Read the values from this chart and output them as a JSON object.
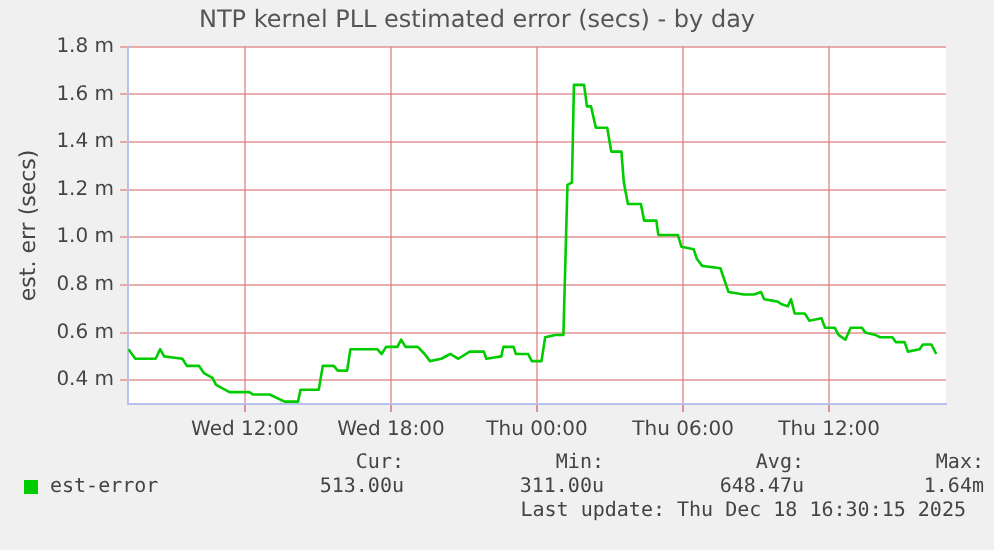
{
  "chart_data": {
    "type": "line",
    "title": "NTP kernel PLL estimated error (secs) - by day",
    "ylabel": "est. err (secs)",
    "x": [
      "2025-12-17T07:13",
      "2025-12-17T07:30",
      "2025-12-17T08:20",
      "2025-12-17T08:31",
      "2025-12-17T08:41",
      "2025-12-17T09:26",
      "2025-12-17T09:37",
      "2025-12-17T10:07",
      "2025-12-17T10:19",
      "2025-12-17T10:40",
      "2025-12-17T10:49",
      "2025-12-17T11:22",
      "2025-12-17T12:11",
      "2025-12-17T12:20",
      "2025-12-17T13:01",
      "2025-12-17T13:38",
      "2025-12-17T14:11",
      "2025-12-17T14:17",
      "2025-12-17T15:02",
      "2025-12-17T15:12",
      "2025-12-17T15:39",
      "2025-12-17T15:49",
      "2025-12-17T16:12",
      "2025-12-17T16:20",
      "2025-12-17T17:26",
      "2025-12-17T17:37",
      "2025-12-17T17:48",
      "2025-12-17T18:16",
      "2025-12-17T18:25",
      "2025-12-17T18:36",
      "2025-12-17T19:06",
      "2025-12-17T19:23",
      "2025-12-17T19:36",
      "2025-12-17T20:04",
      "2025-12-17T20:26",
      "2025-12-17T20:46",
      "2025-12-17T21:14",
      "2025-12-17T21:49",
      "2025-12-17T21:55",
      "2025-12-17T22:32",
      "2025-12-17T22:37",
      "2025-12-17T23:02",
      "2025-12-17T23:08",
      "2025-12-17T23:38",
      "2025-12-17T23:47",
      "2025-12-18T00:11",
      "2025-12-18T00:20",
      "2025-12-18T00:45",
      "2025-12-18T01:05",
      "2025-12-18T01:15",
      "2025-12-18T01:26",
      "2025-12-18T01:31",
      "2025-12-18T01:56",
      "2025-12-18T02:03",
      "2025-12-18T02:13",
      "2025-12-18T02:25",
      "2025-12-18T02:53",
      "2025-12-18T03:03",
      "2025-12-18T03:28",
      "2025-12-18T03:34",
      "2025-12-18T03:44",
      "2025-12-18T04:16",
      "2025-12-18T04:24",
      "2025-12-18T04:54",
      "2025-12-18T04:59",
      "2025-12-18T05:47",
      "2025-12-18T05:56",
      "2025-12-18T06:26",
      "2025-12-18T06:34",
      "2025-12-18T06:47",
      "2025-12-18T07:32",
      "2025-12-18T07:52",
      "2025-12-18T08:30",
      "2025-12-18T08:55",
      "2025-12-18T09:12",
      "2025-12-18T09:20",
      "2025-12-18T09:53",
      "2025-12-18T10:02",
      "2025-12-18T10:18",
      "2025-12-18T10:26",
      "2025-12-18T10:35",
      "2025-12-18T11:00",
      "2025-12-18T11:11",
      "2025-12-18T11:41",
      "2025-12-18T11:50",
      "2025-12-18T12:14",
      "2025-12-18T12:23",
      "2025-12-18T12:40",
      "2025-12-18T12:53",
      "2025-12-18T13:21",
      "2025-12-18T13:29",
      "2025-12-18T13:54",
      "2025-12-18T14:06",
      "2025-12-18T14:36",
      "2025-12-18T14:44",
      "2025-12-18T15:06",
      "2025-12-18T15:14",
      "2025-12-18T15:43",
      "2025-12-18T15:51",
      "2025-12-18T16:12",
      "2025-12-18T16:24"
    ],
    "series": [
      {
        "name": "est-error",
        "color": "#00cc00",
        "values": [
          0.53,
          0.49,
          0.49,
          0.53,
          0.5,
          0.49,
          0.46,
          0.46,
          0.43,
          0.41,
          0.38,
          0.35,
          0.35,
          0.34,
          0.34,
          0.31,
          0.31,
          0.36,
          0.36,
          0.46,
          0.46,
          0.44,
          0.44,
          0.53,
          0.53,
          0.51,
          0.54,
          0.54,
          0.57,
          0.54,
          0.54,
          0.51,
          0.48,
          0.49,
          0.51,
          0.49,
          0.52,
          0.52,
          0.49,
          0.5,
          0.54,
          0.54,
          0.51,
          0.51,
          0.48,
          0.48,
          0.58,
          0.59,
          0.59,
          1.22,
          1.23,
          1.64,
          1.64,
          1.55,
          1.55,
          1.46,
          1.46,
          1.36,
          1.36,
          1.23,
          1.14,
          1.14,
          1.07,
          1.07,
          1.01,
          1.01,
          0.96,
          0.95,
          0.91,
          0.88,
          0.87,
          0.77,
          0.76,
          0.76,
          0.77,
          0.74,
          0.73,
          0.72,
          0.71,
          0.74,
          0.68,
          0.68,
          0.65,
          0.66,
          0.62,
          0.62,
          0.59,
          0.57,
          0.62,
          0.62,
          0.6,
          0.59,
          0.58,
          0.58,
          0.56,
          0.56,
          0.52,
          0.53,
          0.55,
          0.55,
          0.51
        ]
      }
    ],
    "xlim": [
      "2025-12-17T07:12",
      "2025-12-18T16:48"
    ],
    "xticks": [
      {
        "value": "2025-12-17T12:00",
        "label": "Wed 12:00"
      },
      {
        "value": "2025-12-17T18:00",
        "label": "Wed 18:00"
      },
      {
        "value": "2025-12-18T00:00",
        "label": "Thu 00:00"
      },
      {
        "value": "2025-12-18T06:00",
        "label": "Thu 06:00"
      },
      {
        "value": "2025-12-18T12:00",
        "label": "Thu 12:00"
      }
    ],
    "ylim": [
      0.3,
      1.8
    ],
    "yticks": [
      {
        "value": 0.4,
        "label": "0.4 m"
      },
      {
        "value": 0.6,
        "label": "0.6 m"
      },
      {
        "value": 0.8,
        "label": "0.8 m"
      },
      {
        "value": 1.0,
        "label": "1.0 m"
      },
      {
        "value": 1.2,
        "label": "1.2 m"
      },
      {
        "value": 1.4,
        "label": "1.4 m"
      },
      {
        "value": 1.6,
        "label": "1.6 m"
      },
      {
        "value": 1.8,
        "label": "1.8 m"
      }
    ],
    "grid": true,
    "legend": "bottom",
    "marker": "none",
    "line_style": "solid",
    "annotations": [
      "Cur:",
      "513.00u",
      "Min:",
      "311.00u",
      "Avg:",
      "648.47u",
      "Max:",
      "1.64m",
      "Last update: Thu Dec 18 16:30:15 2025"
    ]
  }
}
